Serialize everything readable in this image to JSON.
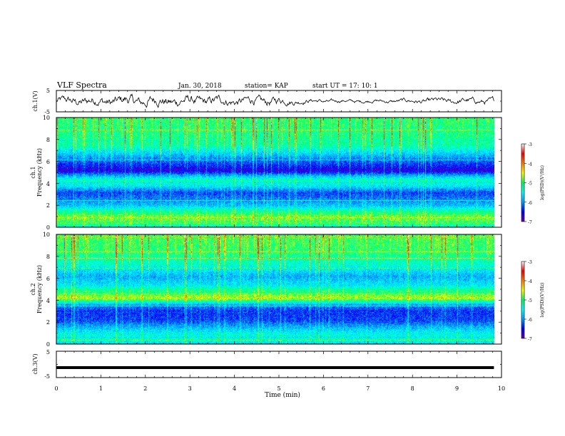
{
  "header": {
    "title": "VLF Spectra",
    "date": "Jan. 30, 2018",
    "station": "station= KAP",
    "start": "start  UT =   17: 10: 1"
  },
  "colorbar": {
    "label": "log(PSD)(V²/Hz)",
    "min": -7,
    "max": -3,
    "ticks": [
      "-3",
      "-4",
      "-5",
      "-6",
      "-7"
    ],
    "stops": [
      "#6a00a8",
      "#0000ff",
      "#00a0ff",
      "#00ffff",
      "#00ff60",
      "#ffff00",
      "#ff8000",
      "#ff0000",
      "#ffffff"
    ]
  },
  "chart_data": [
    {
      "type": "line",
      "name": "ch.1 waveform",
      "ylabel": "ch.1(V)",
      "ylim": [
        -5,
        5
      ],
      "yticks": [
        "5",
        "-5"
      ],
      "xlim": [
        0,
        10
      ],
      "x_end": 9.83,
      "noise_envelope": [
        {
          "x": 0.0,
          "amp": 2.2
        },
        {
          "x": 1.0,
          "amp": 3.2
        },
        {
          "x": 2.0,
          "amp": 3.4
        },
        {
          "x": 3.0,
          "amp": 3.0
        },
        {
          "x": 4.0,
          "amp": 2.6
        },
        {
          "x": 5.0,
          "amp": 2.6
        },
        {
          "x": 5.5,
          "amp": 1.4
        },
        {
          "x": 6.5,
          "amp": 1.0
        },
        {
          "x": 7.5,
          "amp": 1.1
        },
        {
          "x": 8.5,
          "amp": 1.6
        },
        {
          "x": 9.83,
          "amp": 1.8
        }
      ]
    },
    {
      "type": "heatmap",
      "name": "ch.1 spectrogram",
      "ylabel_lines": [
        "ch.1",
        "Frequency (kHz)"
      ],
      "xlim": [
        0,
        10
      ],
      "ylim": [
        0,
        10
      ],
      "yticks": [
        "0",
        "2",
        "4",
        "6",
        "8",
        "10"
      ],
      "time_end": 9.83,
      "freq_band_levels": [
        {
          "f": 0.0,
          "level": -5.6
        },
        {
          "f": 0.4,
          "level": -4.9
        },
        {
          "f": 1.0,
          "level": -4.8
        },
        {
          "f": 1.5,
          "level": -5.2
        },
        {
          "f": 2.0,
          "level": -5.8
        },
        {
          "f": 2.6,
          "level": -6.1
        },
        {
          "f": 3.2,
          "level": -6.3
        },
        {
          "f": 3.8,
          "level": -5.6
        },
        {
          "f": 4.3,
          "level": -5.3
        },
        {
          "f": 4.8,
          "level": -6.0
        },
        {
          "f": 5.2,
          "level": -6.7
        },
        {
          "f": 5.7,
          "level": -6.4
        },
        {
          "f": 6.5,
          "level": -5.9
        },
        {
          "f": 7.5,
          "level": -5.2
        },
        {
          "f": 8.5,
          "level": -5.1
        },
        {
          "f": 10.0,
          "level": -5.0
        }
      ]
    },
    {
      "type": "heatmap",
      "name": "ch.2 spectrogram",
      "ylabel_lines": [
        "ch.2",
        "Frequency (kHz)"
      ],
      "xlim": [
        0,
        10
      ],
      "ylim": [
        0,
        10
      ],
      "yticks": [
        "0",
        "2",
        "4",
        "6",
        "8",
        "10"
      ],
      "time_end": 9.83,
      "freq_band_levels": [
        {
          "f": 0.0,
          "level": -5.7
        },
        {
          "f": 0.5,
          "level": -5.4
        },
        {
          "f": 1.0,
          "level": -5.5
        },
        {
          "f": 1.6,
          "level": -5.9
        },
        {
          "f": 2.2,
          "level": -6.3
        },
        {
          "f": 3.0,
          "level": -6.4
        },
        {
          "f": 3.6,
          "level": -6.0
        },
        {
          "f": 4.2,
          "level": -4.6
        },
        {
          "f": 4.8,
          "level": -5.0
        },
        {
          "f": 5.4,
          "level": -5.6
        },
        {
          "f": 6.2,
          "level": -5.9
        },
        {
          "f": 7.2,
          "level": -5.4
        },
        {
          "f": 8.5,
          "level": -5.0
        },
        {
          "f": 10.0,
          "level": -4.9
        }
      ]
    },
    {
      "type": "line",
      "name": "ch.3 waveform",
      "ylabel": "ch.3(V)",
      "ylim": [
        -5,
        5
      ],
      "yticks": [
        "5",
        "-5"
      ],
      "xlim": [
        0,
        10
      ],
      "x_end": 9.83,
      "level": -1.2,
      "xlabel": "Time (min)",
      "xticks": [
        "0",
        "1",
        "2",
        "3",
        "4",
        "5",
        "6",
        "7",
        "8",
        "9",
        "10"
      ]
    }
  ]
}
